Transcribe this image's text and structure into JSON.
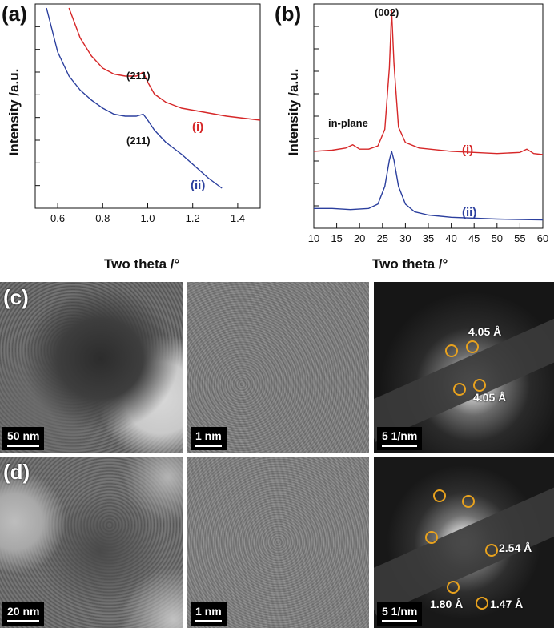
{
  "panels": {
    "a": {
      "label": "(a)"
    },
    "b": {
      "label": "(b)"
    },
    "c": {
      "label": "(c)"
    },
    "d": {
      "label": "(d)"
    }
  },
  "chart_data": [
    {
      "panel": "a",
      "type": "line",
      "xlabel": "Two theta /°",
      "ylabel": "Intensity /a.u.",
      "xlim": [
        0.5,
        1.5
      ],
      "x_ticks": [
        "0.6",
        "0.8",
        "1.0",
        "1.2",
        "1.4"
      ],
      "y_ticks_labeled": false,
      "annotations": [
        {
          "text": "(211)",
          "x": 0.98,
          "series": "(i)"
        },
        {
          "text": "(211)",
          "x": 0.98,
          "series": "(ii)"
        }
      ],
      "series": [
        {
          "name": "(i)",
          "color": "#d62728",
          "x": [
            0.65,
            0.7,
            0.75,
            0.8,
            0.85,
            0.9,
            0.95,
            0.98,
            1.0,
            1.03,
            1.08,
            1.15,
            1.25,
            1.35,
            1.5
          ],
          "y": [
            10.0,
            8.5,
            7.6,
            7.0,
            6.7,
            6.6,
            6.6,
            6.8,
            6.3,
            5.7,
            5.3,
            5.0,
            4.8,
            4.6,
            4.4
          ]
        },
        {
          "name": "(ii)",
          "color": "#2b3f9e",
          "x": [
            0.55,
            0.6,
            0.65,
            0.7,
            0.75,
            0.8,
            0.85,
            0.9,
            0.95,
            0.98,
            1.0,
            1.03,
            1.08,
            1.15,
            1.2,
            1.27,
            1.33
          ],
          "y": [
            10.0,
            7.8,
            6.6,
            5.9,
            5.4,
            5.0,
            4.7,
            4.6,
            4.6,
            4.7,
            4.4,
            3.9,
            3.3,
            2.7,
            2.2,
            1.5,
            1.0
          ]
        }
      ]
    },
    {
      "panel": "b",
      "type": "line",
      "xlabel": "Two theta /°",
      "ylabel": "Intensity /a.u.",
      "xlim": [
        10,
        60
      ],
      "x_ticks": [
        "10",
        "15",
        "20",
        "25",
        "30",
        "35",
        "40",
        "45",
        "50",
        "55",
        "60"
      ],
      "y_ticks_labeled": false,
      "annotations": [
        {
          "text": "(002)",
          "x": 27,
          "series": "(i)"
        },
        {
          "text": "in-plane",
          "x": 18.5,
          "series": "(i)"
        }
      ],
      "series": [
        {
          "name": "(i)",
          "color": "#d62728",
          "x": [
            10,
            14,
            17,
            18.5,
            20,
            22,
            24,
            25.5,
            26.5,
            27,
            27.5,
            28.5,
            30,
            33,
            40,
            50,
            55,
            56.5,
            58,
            60
          ],
          "y": [
            3.2,
            3.25,
            3.35,
            3.5,
            3.3,
            3.3,
            3.45,
            4.2,
            7.0,
            9.6,
            7.2,
            4.3,
            3.6,
            3.35,
            3.2,
            3.1,
            3.15,
            3.3,
            3.1,
            3.05
          ]
        },
        {
          "name": "(ii)",
          "color": "#2b3f9e",
          "x": [
            10,
            14,
            18,
            22,
            24,
            25.5,
            26.5,
            27,
            27.5,
            28.5,
            30,
            32,
            35,
            40,
            50,
            60
          ],
          "y": [
            0.6,
            0.6,
            0.55,
            0.6,
            0.8,
            1.6,
            2.8,
            3.2,
            2.8,
            1.6,
            0.8,
            0.45,
            0.3,
            0.2,
            0.12,
            0.08
          ]
        }
      ]
    }
  ],
  "tem_images": {
    "c": [
      {
        "scale_text": "50 nm"
      },
      {
        "scale_text": "1 nm"
      },
      {
        "scale_text": "5  1/nm",
        "d_spacings": [
          "4.05 Å",
          "4.05 Å"
        ]
      }
    ],
    "d": [
      {
        "scale_text": "20 nm"
      },
      {
        "scale_text": "1 nm"
      },
      {
        "scale_text": "5  1/nm",
        "d_spacings": [
          "2.54 Å",
          "1.80 Å",
          "1.47 Å"
        ]
      }
    ]
  },
  "colors": {
    "series_i": "#d62728",
    "series_ii": "#2b3f9e",
    "saed_ring": "#e8a21e"
  }
}
